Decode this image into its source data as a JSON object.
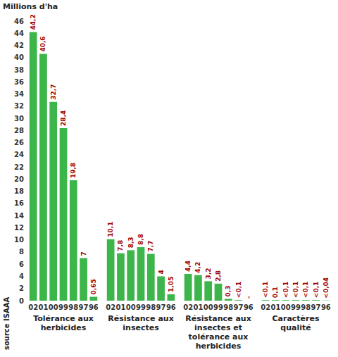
{
  "chart_data": [
    {
      "type": "bar",
      "title": "Tolérance aux herbicides",
      "y_label": "Millions d'ha",
      "annotation": "source ISAAA",
      "categories": [
        "02",
        "01",
        "00",
        "99",
        "98",
        "97",
        "96"
      ],
      "values": [
        44.2,
        40.6,
        32.7,
        28.4,
        19.8,
        7,
        0.65
      ],
      "value_labels": [
        "44,2",
        "40,6",
        "32,7",
        "28,4",
        "19,8",
        "7",
        "0,65"
      ],
      "color": "#3cb54a",
      "ylim": [
        0,
        46
      ],
      "yticks": [
        0,
        2,
        4,
        6,
        8,
        10,
        12,
        14,
        16,
        18,
        20,
        22,
        24,
        26,
        28,
        30,
        32,
        34,
        36,
        38,
        40,
        42,
        44,
        46
      ],
      "grid": false,
      "data_labels": true,
      "tick_labels": true
    },
    {
      "type": "bar",
      "title": "Résistance aux insectes",
      "categories": [
        "02",
        "01",
        "00",
        "99",
        "98",
        "97",
        "96"
      ],
      "values": [
        10.1,
        7.8,
        8.3,
        8.8,
        7.7,
        4,
        1.05
      ],
      "value_labels": [
        "10,1",
        "7,8",
        "8,3",
        "8,8",
        "7,7",
        "4",
        "1,05"
      ],
      "color": "#3cb54a",
      "ylim": [
        0,
        46
      ],
      "yticks": [
        0,
        2,
        4,
        6,
        8,
        10,
        12,
        14,
        16,
        18,
        20,
        22,
        24,
        26,
        28,
        30,
        32,
        34,
        36,
        38,
        40,
        42,
        44,
        46
      ],
      "grid": false,
      "data_labels": true,
      "tick_labels": "x"
    },
    {
      "type": "bar",
      "title": "Résistance aux insectes et tolérance aux herbicides",
      "categories": [
        "02",
        "01",
        "00",
        "99",
        "98",
        "97",
        "96"
      ],
      "values": [
        4.4,
        4.2,
        3.2,
        2.8,
        0.3,
        0.1,
        0
      ],
      "value_labels": [
        "4,4",
        "4,2",
        "3,2",
        "2,8",
        "0,3",
        "<0,1",
        "-"
      ],
      "color": "#3cb54a",
      "ylim": [
        0,
        46
      ],
      "yticks": [
        0,
        2,
        4,
        6,
        8,
        10,
        12,
        14,
        16,
        18,
        20,
        22,
        24,
        26,
        28,
        30,
        32,
        34,
        36,
        38,
        40,
        42,
        44,
        46
      ],
      "grid": false,
      "data_labels": true,
      "tick_labels": "x"
    },
    {
      "type": "bar",
      "title": "Caractères qualité",
      "categories": [
        "02",
        "01",
        "00",
        "99",
        "98",
        "97",
        "96"
      ],
      "values": [
        0.1,
        0.1,
        0.1,
        0.1,
        0.1,
        0.1,
        0.04
      ],
      "value_labels": [
        "<0,1",
        "0,1",
        "<0,1",
        "<0,1",
        "<0,1",
        "<0,1",
        "<0,04"
      ],
      "color": "#3cb54a",
      "ylim": [
        0,
        46
      ],
      "yticks": [
        0,
        2,
        4,
        6,
        8,
        10,
        12,
        14,
        16,
        18,
        20,
        22,
        24,
        26,
        28,
        30,
        32,
        34,
        36,
        38,
        40,
        42,
        44,
        46
      ],
      "grid": false,
      "data_labels": true,
      "tick_labels": "x"
    }
  ]
}
